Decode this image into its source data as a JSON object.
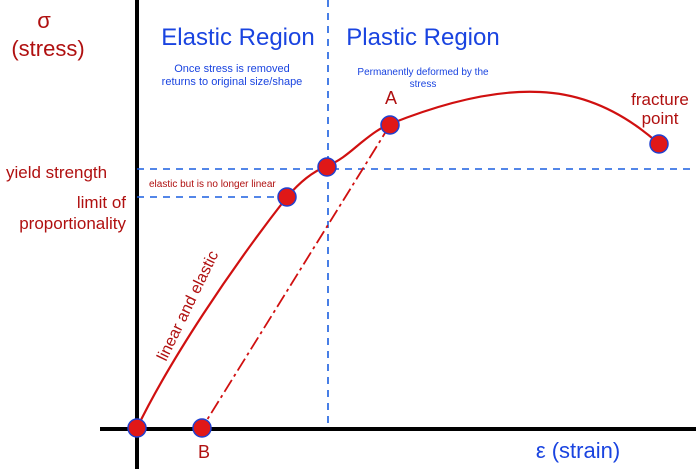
{
  "axes": {
    "y_symbol": "σ",
    "y_label": "(stress)",
    "x_label": "ε (strain)"
  },
  "regions": {
    "elastic": {
      "title": "Elastic Region",
      "note_line1": "Once stress is removed",
      "note_line2": "returns to original size/shape"
    },
    "plastic": {
      "title": "Plastic Region",
      "note_line1": "Permanently deformed by the",
      "note_line2": "stress"
    }
  },
  "labels": {
    "yield_strength": "yield strength",
    "limit_line1": "limit of",
    "limit_line2": "proportionality",
    "elastic_nonlinear": "elastic but is no longer linear",
    "linear_elastic": "linear and elastic",
    "fracture_line1": "fracture",
    "fracture_line2": "point",
    "point_a": "A",
    "point_b": "B"
  },
  "colors": {
    "axis": "#000000",
    "curve": "#d01010",
    "guide": "#1a5fe0",
    "label_red": "#b01010",
    "label_blue": "#1a44e0",
    "point_fill": "#e01818",
    "point_stroke": "#2040d0"
  }
}
